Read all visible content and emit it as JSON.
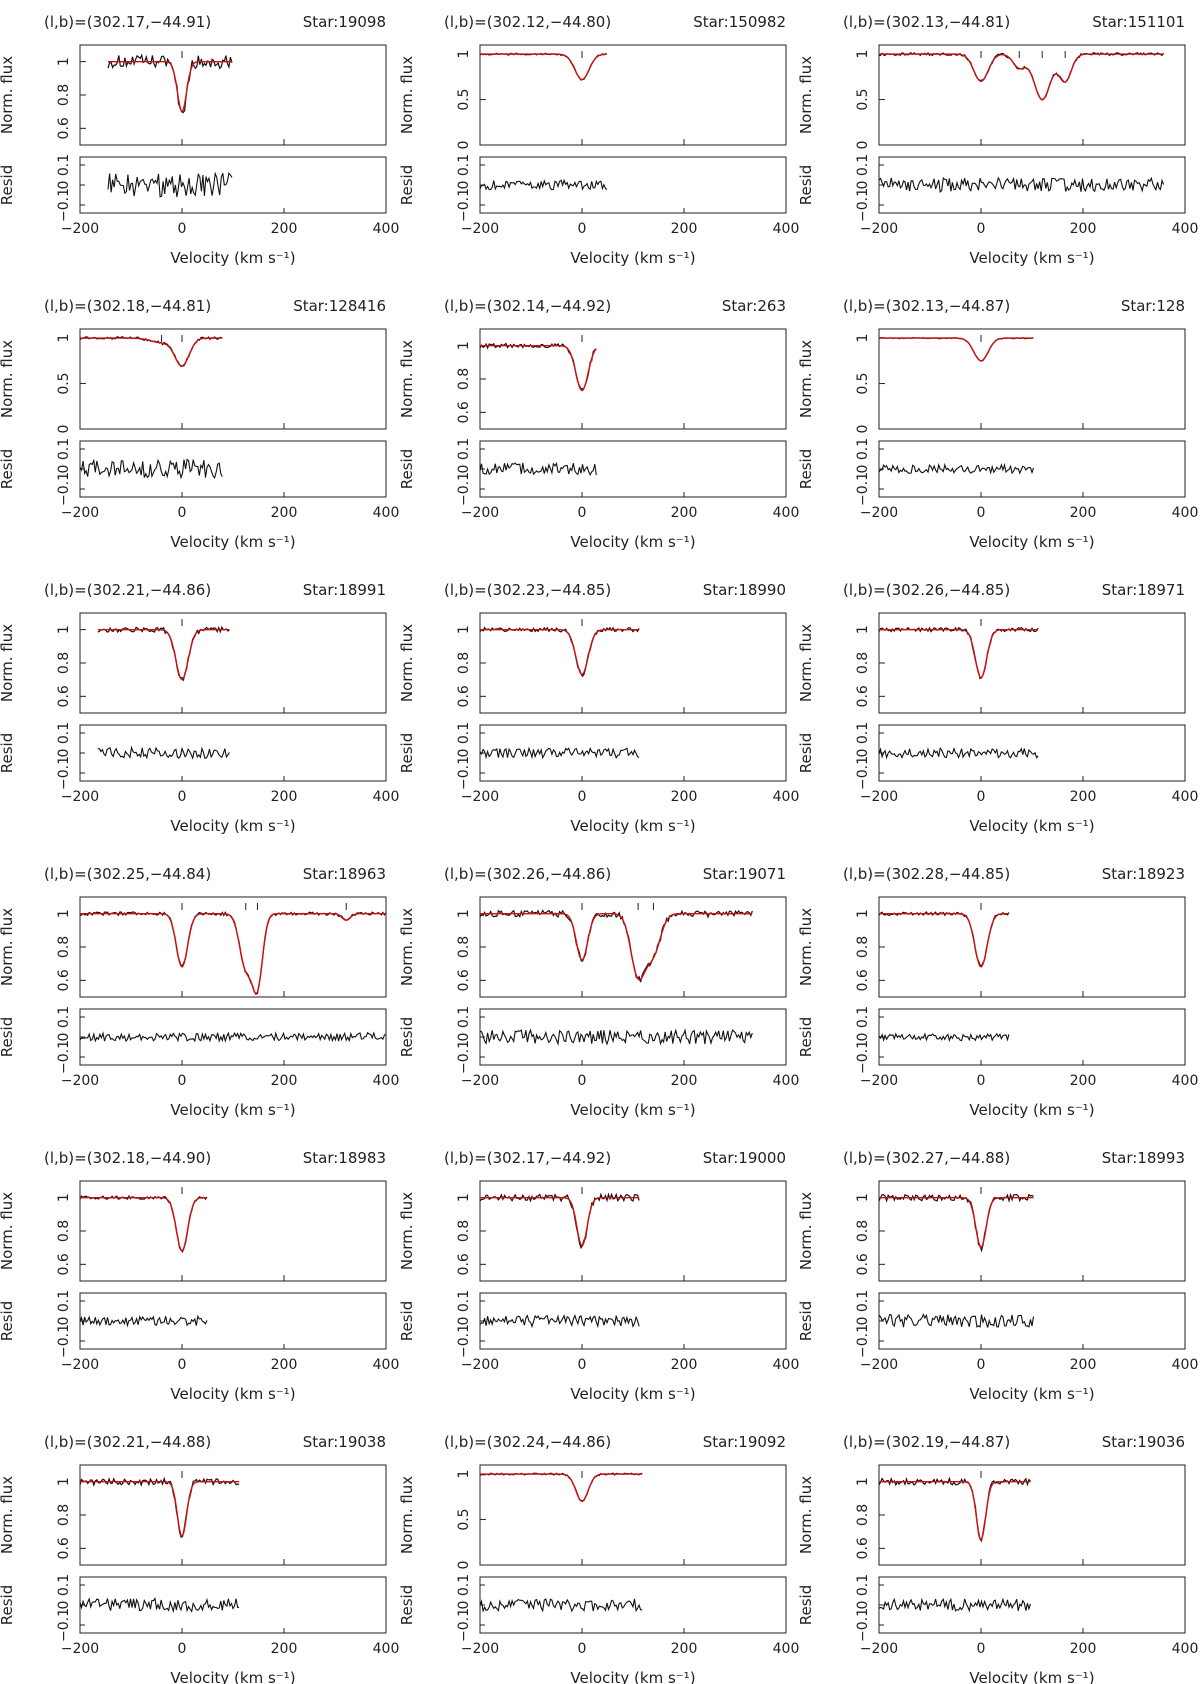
{
  "figure": {
    "ylabel_flux": "Norm. flux",
    "ylabel_resid": "Resid",
    "xlabel": "Velocity (km s⁻¹)",
    "x_ticks": [
      "−200",
      "0",
      "200",
      "400"
    ],
    "resid_ticks": [
      "0.1",
      "0",
      "−0.1"
    ]
  },
  "colors": {
    "data": "#111111",
    "fit": "#cc1111"
  },
  "chart_data": [
    {
      "type": "line",
      "coord": "(l,b)=(302.17,−44.91)",
      "star": "Star:19098",
      "xlim": [
        -200,
        400
      ],
      "flux_ylim": [
        0.5,
        1.1
      ],
      "flux_ticks": [
        "1",
        "0.8",
        "0.6"
      ],
      "x_range": [
        -145,
        100
      ],
      "components": [
        {
          "v": 0,
          "depth": 0.3,
          "width": 9
        }
      ],
      "noise": 0.04,
      "resid_amp": 1.0
    },
    {
      "type": "line",
      "coord": "(l,b)=(302.12,−44.80)",
      "star": "Star:150982",
      "xlim": [
        -200,
        400
      ],
      "flux_ylim": [
        0,
        1.1
      ],
      "flux_ticks": [
        "1",
        "0.5",
        "0"
      ],
      "x_range": [
        -200,
        50
      ],
      "components": [
        {
          "v": 0,
          "depth": 0.28,
          "width": 14
        }
      ],
      "noise": 0.01,
      "resid_amp": 0.4
    },
    {
      "type": "line",
      "coord": "(l,b)=(302.13,−44.81)",
      "star": "Star:151101",
      "xlim": [
        -200,
        400
      ],
      "flux_ylim": [
        0,
        1.1
      ],
      "flux_ticks": [
        "1",
        "0.5",
        "0"
      ],
      "x_range": [
        -200,
        360
      ],
      "components": [
        {
          "v": 0,
          "depth": 0.3,
          "width": 14
        },
        {
          "v": 75,
          "depth": 0.15,
          "width": 12
        },
        {
          "v": 120,
          "depth": 0.5,
          "width": 16
        },
        {
          "v": 165,
          "depth": 0.3,
          "width": 12
        }
      ],
      "noise": 0.015,
      "resid_amp": 0.6
    },
    {
      "type": "line",
      "coord": "(l,b)=(302.18,−44.81)",
      "star": "Star:128416",
      "xlim": [
        -200,
        400
      ],
      "flux_ylim": [
        0,
        1.1
      ],
      "flux_ticks": [
        "1",
        "0.5",
        "0"
      ],
      "x_range": [
        -200,
        80
      ],
      "components": [
        {
          "v": 0,
          "depth": 0.3,
          "width": 14
        },
        {
          "v": -40,
          "depth": 0.05,
          "width": 20
        }
      ],
      "noise": 0.015,
      "resid_amp": 0.8
    },
    {
      "type": "line",
      "coord": "(l,b)=(302.14,−44.92)",
      "star": "Star:263",
      "xlim": [
        -200,
        400
      ],
      "flux_ylim": [
        0.5,
        1.1
      ],
      "flux_ticks": [
        "1",
        "0.8",
        "0.6"
      ],
      "x_range": [
        -200,
        28
      ],
      "components": [
        {
          "v": 0,
          "depth": 0.27,
          "width": 12
        }
      ],
      "noise": 0.015,
      "resid_amp": 0.5
    },
    {
      "type": "line",
      "coord": "(l,b)=(302.13,−44.87)",
      "star": "Star:128",
      "xlim": [
        -200,
        400
      ],
      "flux_ylim": [
        0,
        1.1
      ],
      "flux_ticks": [
        "1",
        "0.5",
        "0"
      ],
      "x_range": [
        -200,
        105
      ],
      "components": [
        {
          "v": 0,
          "depth": 0.25,
          "width": 14
        }
      ],
      "noise": 0.006,
      "resid_amp": 0.35
    },
    {
      "type": "line",
      "coord": "(l,b)=(302.21,−44.86)",
      "star": "Star:18991",
      "xlim": [
        -200,
        400
      ],
      "flux_ylim": [
        0.5,
        1.1
      ],
      "flux_ticks": [
        "1",
        "0.8",
        "0.6"
      ],
      "x_range": [
        -165,
        95
      ],
      "components": [
        {
          "v": 0,
          "depth": 0.3,
          "width": 12
        }
      ],
      "noise": 0.015,
      "resid_amp": 0.45
    },
    {
      "type": "line",
      "coord": "(l,b)=(302.23,−44.85)",
      "star": "Star:18990",
      "xlim": [
        -200,
        400
      ],
      "flux_ylim": [
        0.5,
        1.1
      ],
      "flux_ticks": [
        "1",
        "0.8",
        "0.6"
      ],
      "x_range": [
        -200,
        112
      ],
      "components": [
        {
          "v": 0,
          "depth": 0.27,
          "width": 12
        }
      ],
      "noise": 0.012,
      "resid_amp": 0.4
    },
    {
      "type": "line",
      "coord": "(l,b)=(302.26,−44.85)",
      "star": "Star:18971",
      "xlim": [
        -200,
        400
      ],
      "flux_ylim": [
        0.5,
        1.1
      ],
      "flux_ticks": [
        "1",
        "0.8",
        "0.6"
      ],
      "x_range": [
        -200,
        112
      ],
      "components": [
        {
          "v": 0,
          "depth": 0.29,
          "width": 11
        }
      ],
      "noise": 0.012,
      "resid_amp": 0.4
    },
    {
      "type": "line",
      "coord": "(l,b)=(302.25,−44.84)",
      "star": "Star:18963",
      "xlim": [
        -200,
        400
      ],
      "flux_ylim": [
        0.5,
        1.1
      ],
      "flux_ticks": [
        "1",
        "0.8",
        "0.6"
      ],
      "x_range": [
        -200,
        400
      ],
      "components": [
        {
          "v": 0,
          "depth": 0.32,
          "width": 11
        },
        {
          "v": 125,
          "depth": 0.32,
          "width": 12
        },
        {
          "v": 148,
          "depth": 0.42,
          "width": 10
        },
        {
          "v": 322,
          "depth": 0.04,
          "width": 8
        }
      ],
      "noise": 0.01,
      "resid_amp": 0.35
    },
    {
      "type": "line",
      "coord": "(l,b)=(302.26,−44.86)",
      "star": "Star:19071",
      "xlim": [
        -200,
        400
      ],
      "flux_ylim": [
        0.5,
        1.1
      ],
      "flux_ticks": [
        "1",
        "0.8",
        "0.6"
      ],
      "x_range": [
        -200,
        335
      ],
      "components": [
        {
          "v": 0,
          "depth": 0.28,
          "width": 11
        },
        {
          "v": 110,
          "depth": 0.37,
          "width": 14
        },
        {
          "v": 140,
          "depth": 0.23,
          "width": 14
        }
      ],
      "noise": 0.02,
      "resid_amp": 0.6
    },
    {
      "type": "line",
      "coord": "(l,b)=(302.28,−44.85)",
      "star": "Star:18923",
      "xlim": [
        -200,
        400
      ],
      "flux_ylim": [
        0.5,
        1.1
      ],
      "flux_ticks": [
        "1",
        "0.8",
        "0.6"
      ],
      "x_range": [
        -200,
        55
      ],
      "components": [
        {
          "v": 0,
          "depth": 0.32,
          "width": 12
        }
      ],
      "noise": 0.01,
      "resid_amp": 0.3
    },
    {
      "type": "line",
      "coord": "(l,b)=(302.18,−44.90)",
      "star": "Star:18983",
      "xlim": [
        -200,
        400
      ],
      "flux_ylim": [
        0.5,
        1.1
      ],
      "flux_ticks": [
        "1",
        "0.8",
        "0.6"
      ],
      "x_range": [
        -200,
        50
      ],
      "components": [
        {
          "v": 0,
          "depth": 0.32,
          "width": 11
        }
      ],
      "noise": 0.01,
      "resid_amp": 0.4
    },
    {
      "type": "line",
      "coord": "(l,b)=(302.17,−44.92)",
      "star": "Star:19000",
      "xlim": [
        -200,
        400
      ],
      "flux_ylim": [
        0.5,
        1.1
      ],
      "flux_ticks": [
        "1",
        "0.8",
        "0.6"
      ],
      "x_range": [
        -200,
        112
      ],
      "components": [
        {
          "v": 0,
          "depth": 0.29,
          "width": 10
        }
      ],
      "noise": 0.02,
      "resid_amp": 0.45
    },
    {
      "type": "line",
      "coord": "(l,b)=(302.27,−44.88)",
      "star": "Star:18993",
      "xlim": [
        -200,
        400
      ],
      "flux_ylim": [
        0.5,
        1.1
      ],
      "flux_ticks": [
        "1",
        "0.8",
        "0.6"
      ],
      "x_range": [
        -200,
        105
      ],
      "components": [
        {
          "v": 0,
          "depth": 0.3,
          "width": 10
        }
      ],
      "noise": 0.02,
      "resid_amp": 0.55
    },
    {
      "type": "line",
      "coord": "(l,b)=(302.21,−44.88)",
      "star": "Star:19038",
      "xlim": [
        -200,
        400
      ],
      "flux_ylim": [
        0.5,
        1.1
      ],
      "flux_ticks": [
        "1",
        "0.8",
        "0.6"
      ],
      "x_range": [
        -200,
        112
      ],
      "components": [
        {
          "v": 0,
          "depth": 0.33,
          "width": 9
        }
      ],
      "noise": 0.02,
      "resid_amp": 0.55
    },
    {
      "type": "line",
      "coord": "(l,b)=(302.24,−44.86)",
      "star": "Star:19092",
      "xlim": [
        -200,
        400
      ],
      "flux_ylim": [
        0,
        1.1
      ],
      "flux_ticks": [
        "1",
        "0.5",
        "0"
      ],
      "x_range": [
        -200,
        120
      ],
      "components": [
        {
          "v": 0,
          "depth": 0.3,
          "width": 12
        }
      ],
      "noise": 0.01,
      "resid_amp": 0.5
    },
    {
      "type": "line",
      "coord": "(l,b)=(302.19,−44.87)",
      "star": "Star:19036",
      "xlim": [
        -200,
        400
      ],
      "flux_ylim": [
        0.5,
        1.1
      ],
      "flux_ticks": [
        "1",
        "0.8",
        "0.6"
      ],
      "x_range": [
        -200,
        98
      ],
      "components": [
        {
          "v": 0,
          "depth": 0.35,
          "width": 9
        }
      ],
      "noise": 0.02,
      "resid_amp": 0.5
    }
  ]
}
